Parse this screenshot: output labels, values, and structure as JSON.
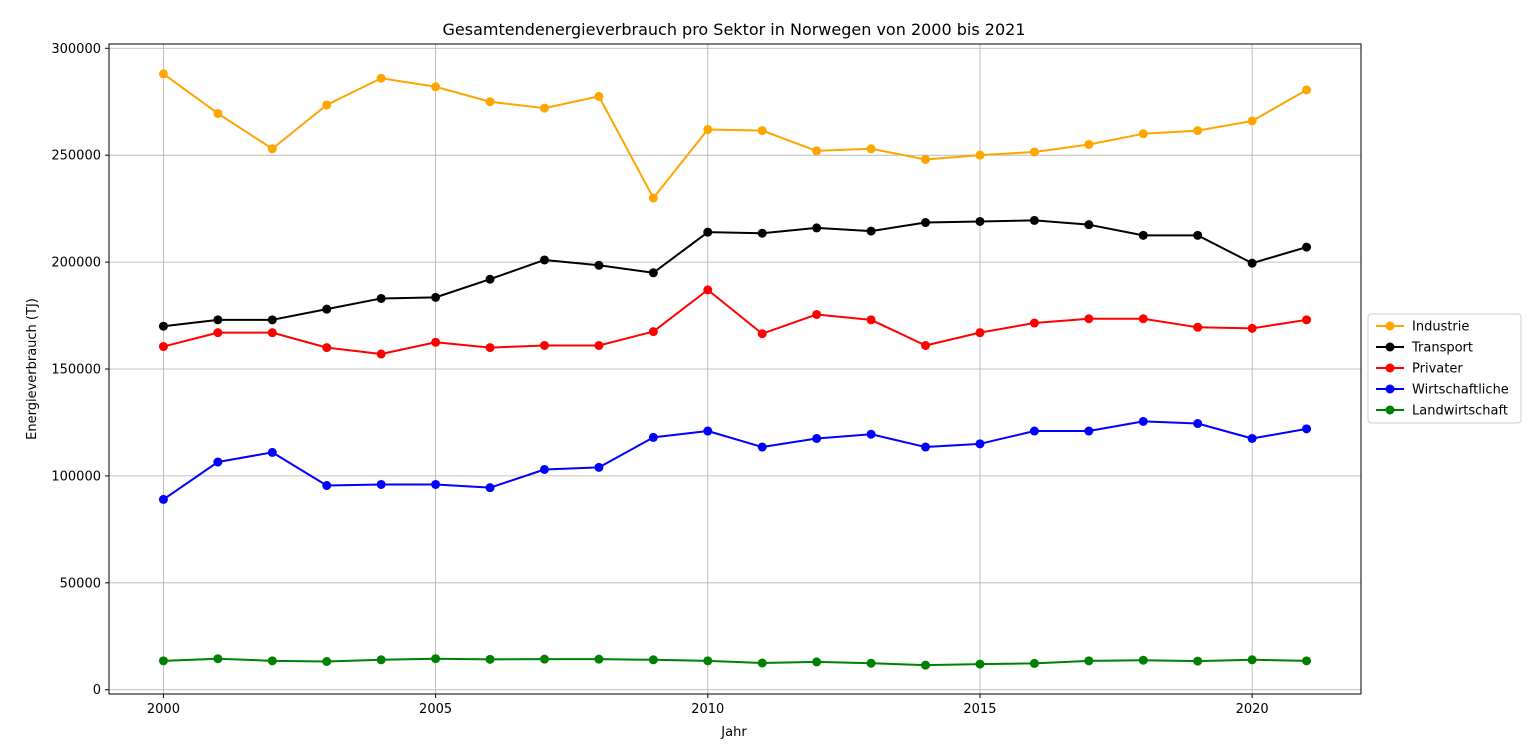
{
  "chart_data": {
    "type": "line",
    "title": "Gesamtendenergieverbrauch pro Sektor in Norwegen von 2000 bis 2021",
    "xlabel": "Jahr",
    "ylabel": "Energieverbrauch (TJ)",
    "x": [
      2000,
      2001,
      2002,
      2003,
      2004,
      2005,
      2006,
      2007,
      2008,
      2009,
      2010,
      2011,
      2012,
      2013,
      2014,
      2015,
      2016,
      2017,
      2018,
      2019,
      2020,
      2021
    ],
    "xlim": [
      1999,
      2022
    ],
    "ylim": [
      -2000,
      302000
    ],
    "xticks": [
      2000,
      2005,
      2010,
      2015,
      2020
    ],
    "yticks": [
      0,
      50000,
      100000,
      150000,
      200000,
      250000,
      300000
    ],
    "grid": true,
    "legend_position": "right",
    "series": [
      {
        "name": "Industrie",
        "color": "#FFA500",
        "values": [
          288000,
          269500,
          253000,
          273500,
          286000,
          282000,
          275000,
          272000,
          277500,
          230000,
          262000,
          261500,
          252000,
          253000,
          248000,
          250000,
          251500,
          255000,
          260000,
          261500,
          266000,
          280500
        ]
      },
      {
        "name": "Transport",
        "color": "#000000",
        "values": [
          170000,
          173000,
          173000,
          178000,
          183000,
          183500,
          192000,
          201000,
          198500,
          195000,
          214000,
          213500,
          216000,
          214500,
          218500,
          219000,
          219500,
          217500,
          212500,
          212500,
          199500,
          207000
        ]
      },
      {
        "name": "Privater",
        "color": "#FF0000",
        "values": [
          160500,
          167000,
          167000,
          160000,
          157000,
          162500,
          160000,
          161000,
          161000,
          167500,
          187000,
          166500,
          175500,
          173000,
          161000,
          167000,
          171500,
          173500,
          173500,
          169500,
          169000,
          173000
        ]
      },
      {
        "name": "Wirtschaftliche",
        "color": "#0000FF",
        "values": [
          89000,
          106500,
          111000,
          95500,
          96000,
          96000,
          94500,
          103000,
          104000,
          118000,
          121000,
          113500,
          117500,
          119500,
          113500,
          115000,
          121000,
          121000,
          125500,
          124500,
          117500,
          122000
        ]
      },
      {
        "name": "Landwirtschaft",
        "color": "#008000",
        "values": [
          13500,
          14500,
          13500,
          13200,
          14000,
          14500,
          14200,
          14300,
          14300,
          14000,
          13500,
          12500,
          13000,
          12400,
          11500,
          12000,
          12300,
          13500,
          13800,
          13400,
          14000,
          13500
        ]
      }
    ]
  }
}
